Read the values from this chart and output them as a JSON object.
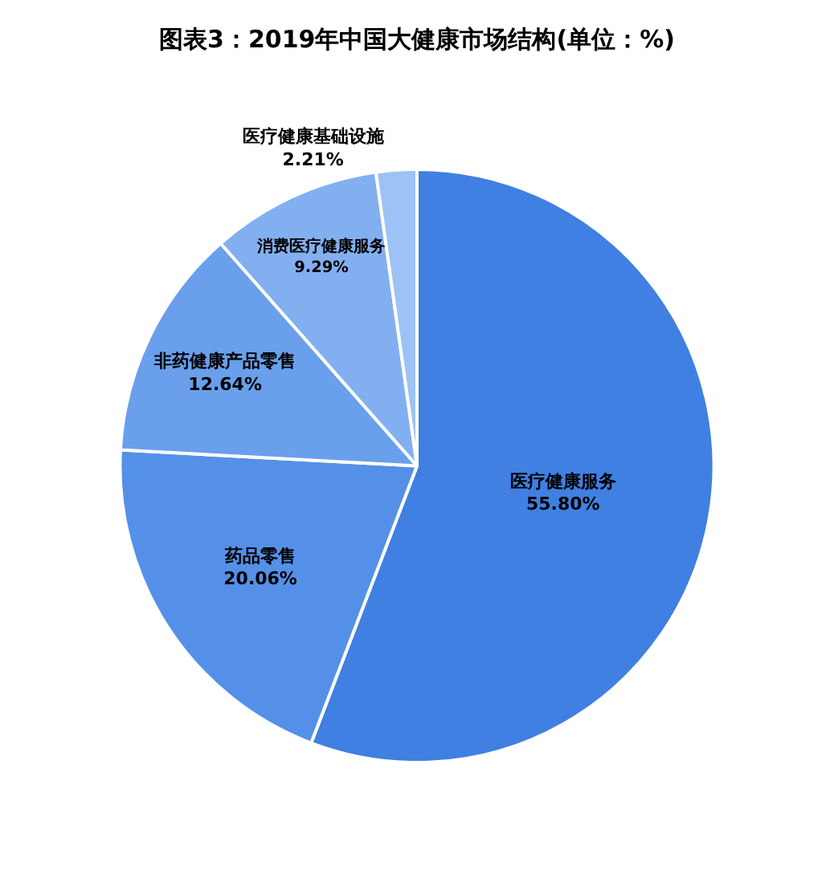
{
  "chart_data": {
    "type": "pie",
    "title": "图表3：2019年中国大健康市场结构(单位：%)",
    "categories": [
      "医疗健康服务",
      "药品零售",
      "非药健康产品零售",
      "消费医疗健康服务",
      "医疗健康基础设施"
    ],
    "values": [
      55.8,
      20.06,
      12.64,
      9.29,
      2.21
    ],
    "value_labels": [
      "55.80%",
      "20.06%",
      "12.64%",
      "9.29%",
      "2.21%"
    ],
    "colors": [
      "#3f80e2",
      "#5590e8",
      "#6a9fec",
      "#82aff0",
      "#9cc2f6"
    ],
    "legend": false
  }
}
